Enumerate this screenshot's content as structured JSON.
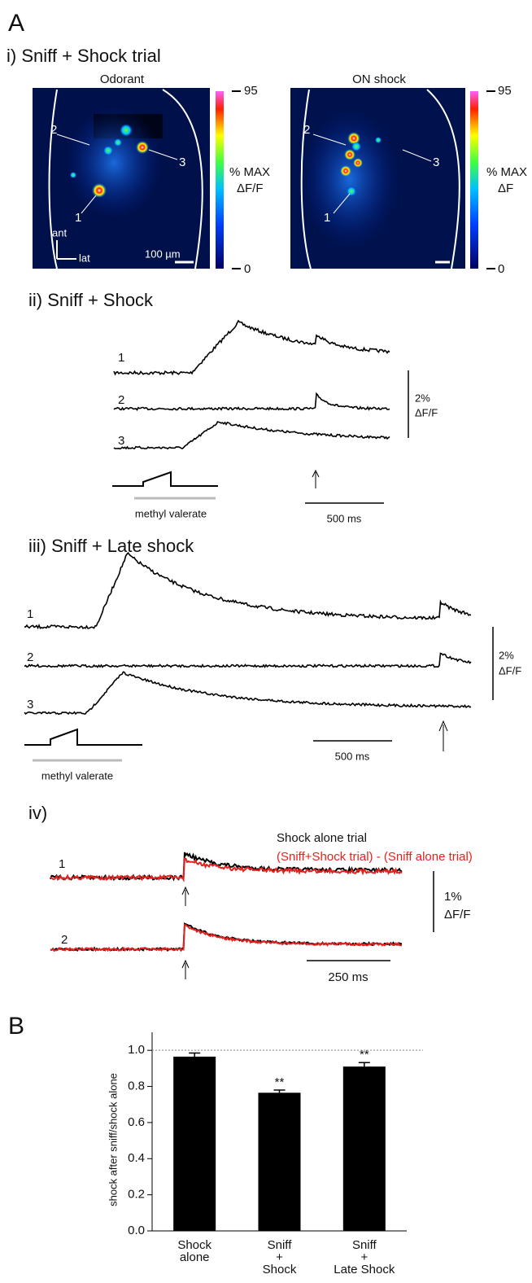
{
  "panel_a": {
    "label": "A",
    "i": {
      "title": "i) Sniff + Shock trial",
      "images": [
        {
          "title": "Odorant",
          "scale_top": "95",
          "scale_bottom": "0",
          "scale_label": [
            "% MAX",
            "ΔF/F"
          ],
          "rois": [
            "1",
            "2",
            "3"
          ],
          "orientation": [
            "ant",
            "lat"
          ],
          "scale_bar": "100 µm"
        },
        {
          "title": "ON shock",
          "scale_top": "95",
          "scale_bottom": "0",
          "scale_label": [
            "% MAX",
            "ΔF"
          ],
          "rois": [
            "1",
            "2",
            "3"
          ]
        }
      ]
    },
    "ii": {
      "title": "ii) Sniff + Shock",
      "traces": [
        "1",
        "2",
        "3"
      ],
      "scale_y": [
        "2%",
        "ΔF/F"
      ],
      "scale_x": "500 ms",
      "stimulus": "methyl valerate"
    },
    "iii": {
      "title": "iii) Sniff + Late shock",
      "traces": [
        "1",
        "2",
        "3"
      ],
      "scale_y": [
        "2%",
        "ΔF/F"
      ],
      "scale_x": "500 ms",
      "stimulus": "methyl valerate"
    },
    "iv": {
      "title": "iv)",
      "legend": [
        "Shock alone trial",
        "(Sniff+Shock trial) - (Sniff alone trial)"
      ],
      "traces": [
        "1",
        "2"
      ],
      "scale_y": [
        "1%",
        "ΔF/F"
      ],
      "scale_x": "250 ms"
    }
  },
  "chart_data": {
    "type": "bar",
    "panel_label": "B",
    "ylabel": "shock after sniff/shock alone",
    "categories": [
      [
        "Shock",
        "alone"
      ],
      [
        "Sniff",
        "+",
        "Shock"
      ],
      [
        "Sniff",
        "+",
        "Late Shock"
      ]
    ],
    "values": [
      0.965,
      0.765,
      0.91
    ],
    "errors": [
      0.02,
      0.015,
      0.022
    ],
    "annotations": [
      null,
      "**",
      "**"
    ],
    "color": "#000000",
    "ylim": [
      0,
      1.1
    ],
    "yticks": [
      {
        "value": 0,
        "label": "0.0"
      },
      0.2,
      0.4,
      0.6,
      0.8,
      {
        "value": 1,
        "label": "1.0"
      }
    ],
    "reference_line": 1
  }
}
